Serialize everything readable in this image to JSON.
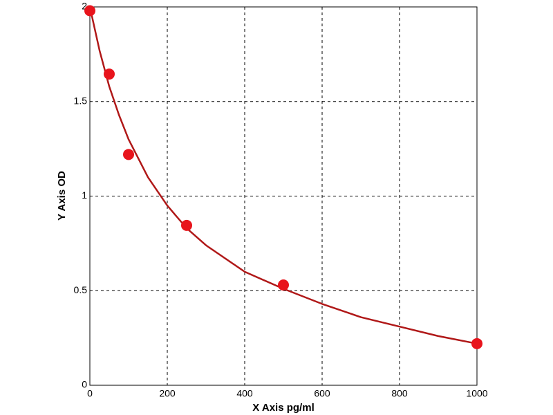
{
  "chart_data": {
    "type": "scatter",
    "xlabel": "X Axis pg/ml",
    "ylabel": "Y Axis OD",
    "x": [
      0,
      50,
      100,
      250,
      500,
      1000
    ],
    "values": [
      1.98,
      1.645,
      1.22,
      0.845,
      0.53,
      0.22
    ],
    "color": "#e8141c",
    "curve": {
      "x": [
        0,
        25,
        50,
        75,
        100,
        150,
        200,
        250,
        300,
        400,
        500,
        600,
        700,
        800,
        900,
        1000
      ],
      "values": [
        2.0,
        1.77,
        1.58,
        1.43,
        1.3,
        1.1,
        0.95,
        0.83,
        0.74,
        0.6,
        0.51,
        0.43,
        0.36,
        0.31,
        0.26,
        0.22
      ],
      "color": "#b01818"
    },
    "xlim": [
      0,
      1000
    ],
    "xticks": [
      0,
      200,
      400,
      600,
      800,
      1000
    ],
    "ylim": [
      0,
      2
    ],
    "yticks": [
      0,
      0.5,
      1,
      1.5,
      2
    ],
    "grid": true
  }
}
